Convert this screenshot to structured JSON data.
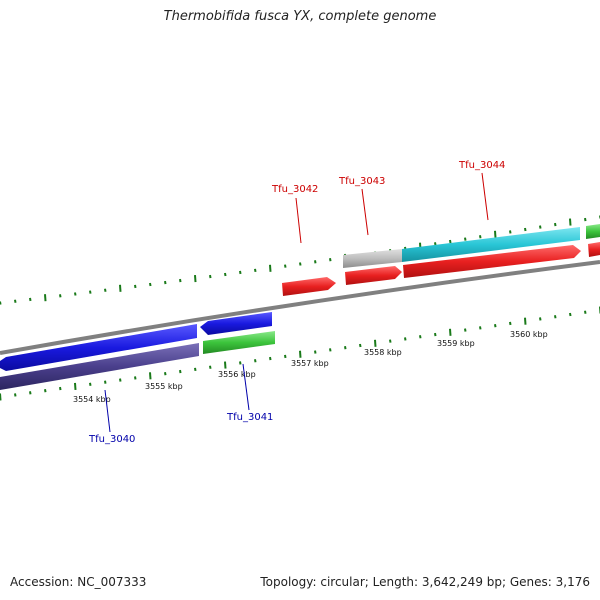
{
  "title": "Thermobifida fusca YX, complete genome",
  "footer": {
    "accession": "Accession: NC_007333",
    "summary": "Topology: circular; Length: 3,642,249 bp; Genes: 3,176"
  },
  "colors": {
    "forward_label": "#cc0000",
    "reverse_label": "#0000aa",
    "tick": "#1a7a1a",
    "backbone": "#808080"
  },
  "kbp_labels": [
    "3554 kbp",
    "3555 kbp",
    "3556 kbp",
    "3557 kbp",
    "3558 kbp",
    "3559 kbp",
    "3560 kbp"
  ],
  "genes_forward": [
    {
      "id": "Tfu_3042",
      "color": "#e82020"
    },
    {
      "id": "Tfu_3043",
      "color": "#e82020"
    },
    {
      "id": "Tfu_3044",
      "color": "#e82020"
    }
  ],
  "genes_reverse": [
    {
      "id": "Tfu_3040",
      "color": "#1a1ae0"
    },
    {
      "id": "Tfu_3041",
      "color": "#1a1ae0"
    }
  ],
  "upper_track_colors": [
    "#bdbdbd",
    "#29c6d6",
    "#3cc43c"
  ],
  "lower_track_colors": [
    "#4a3f8c",
    "#3cc43c"
  ]
}
